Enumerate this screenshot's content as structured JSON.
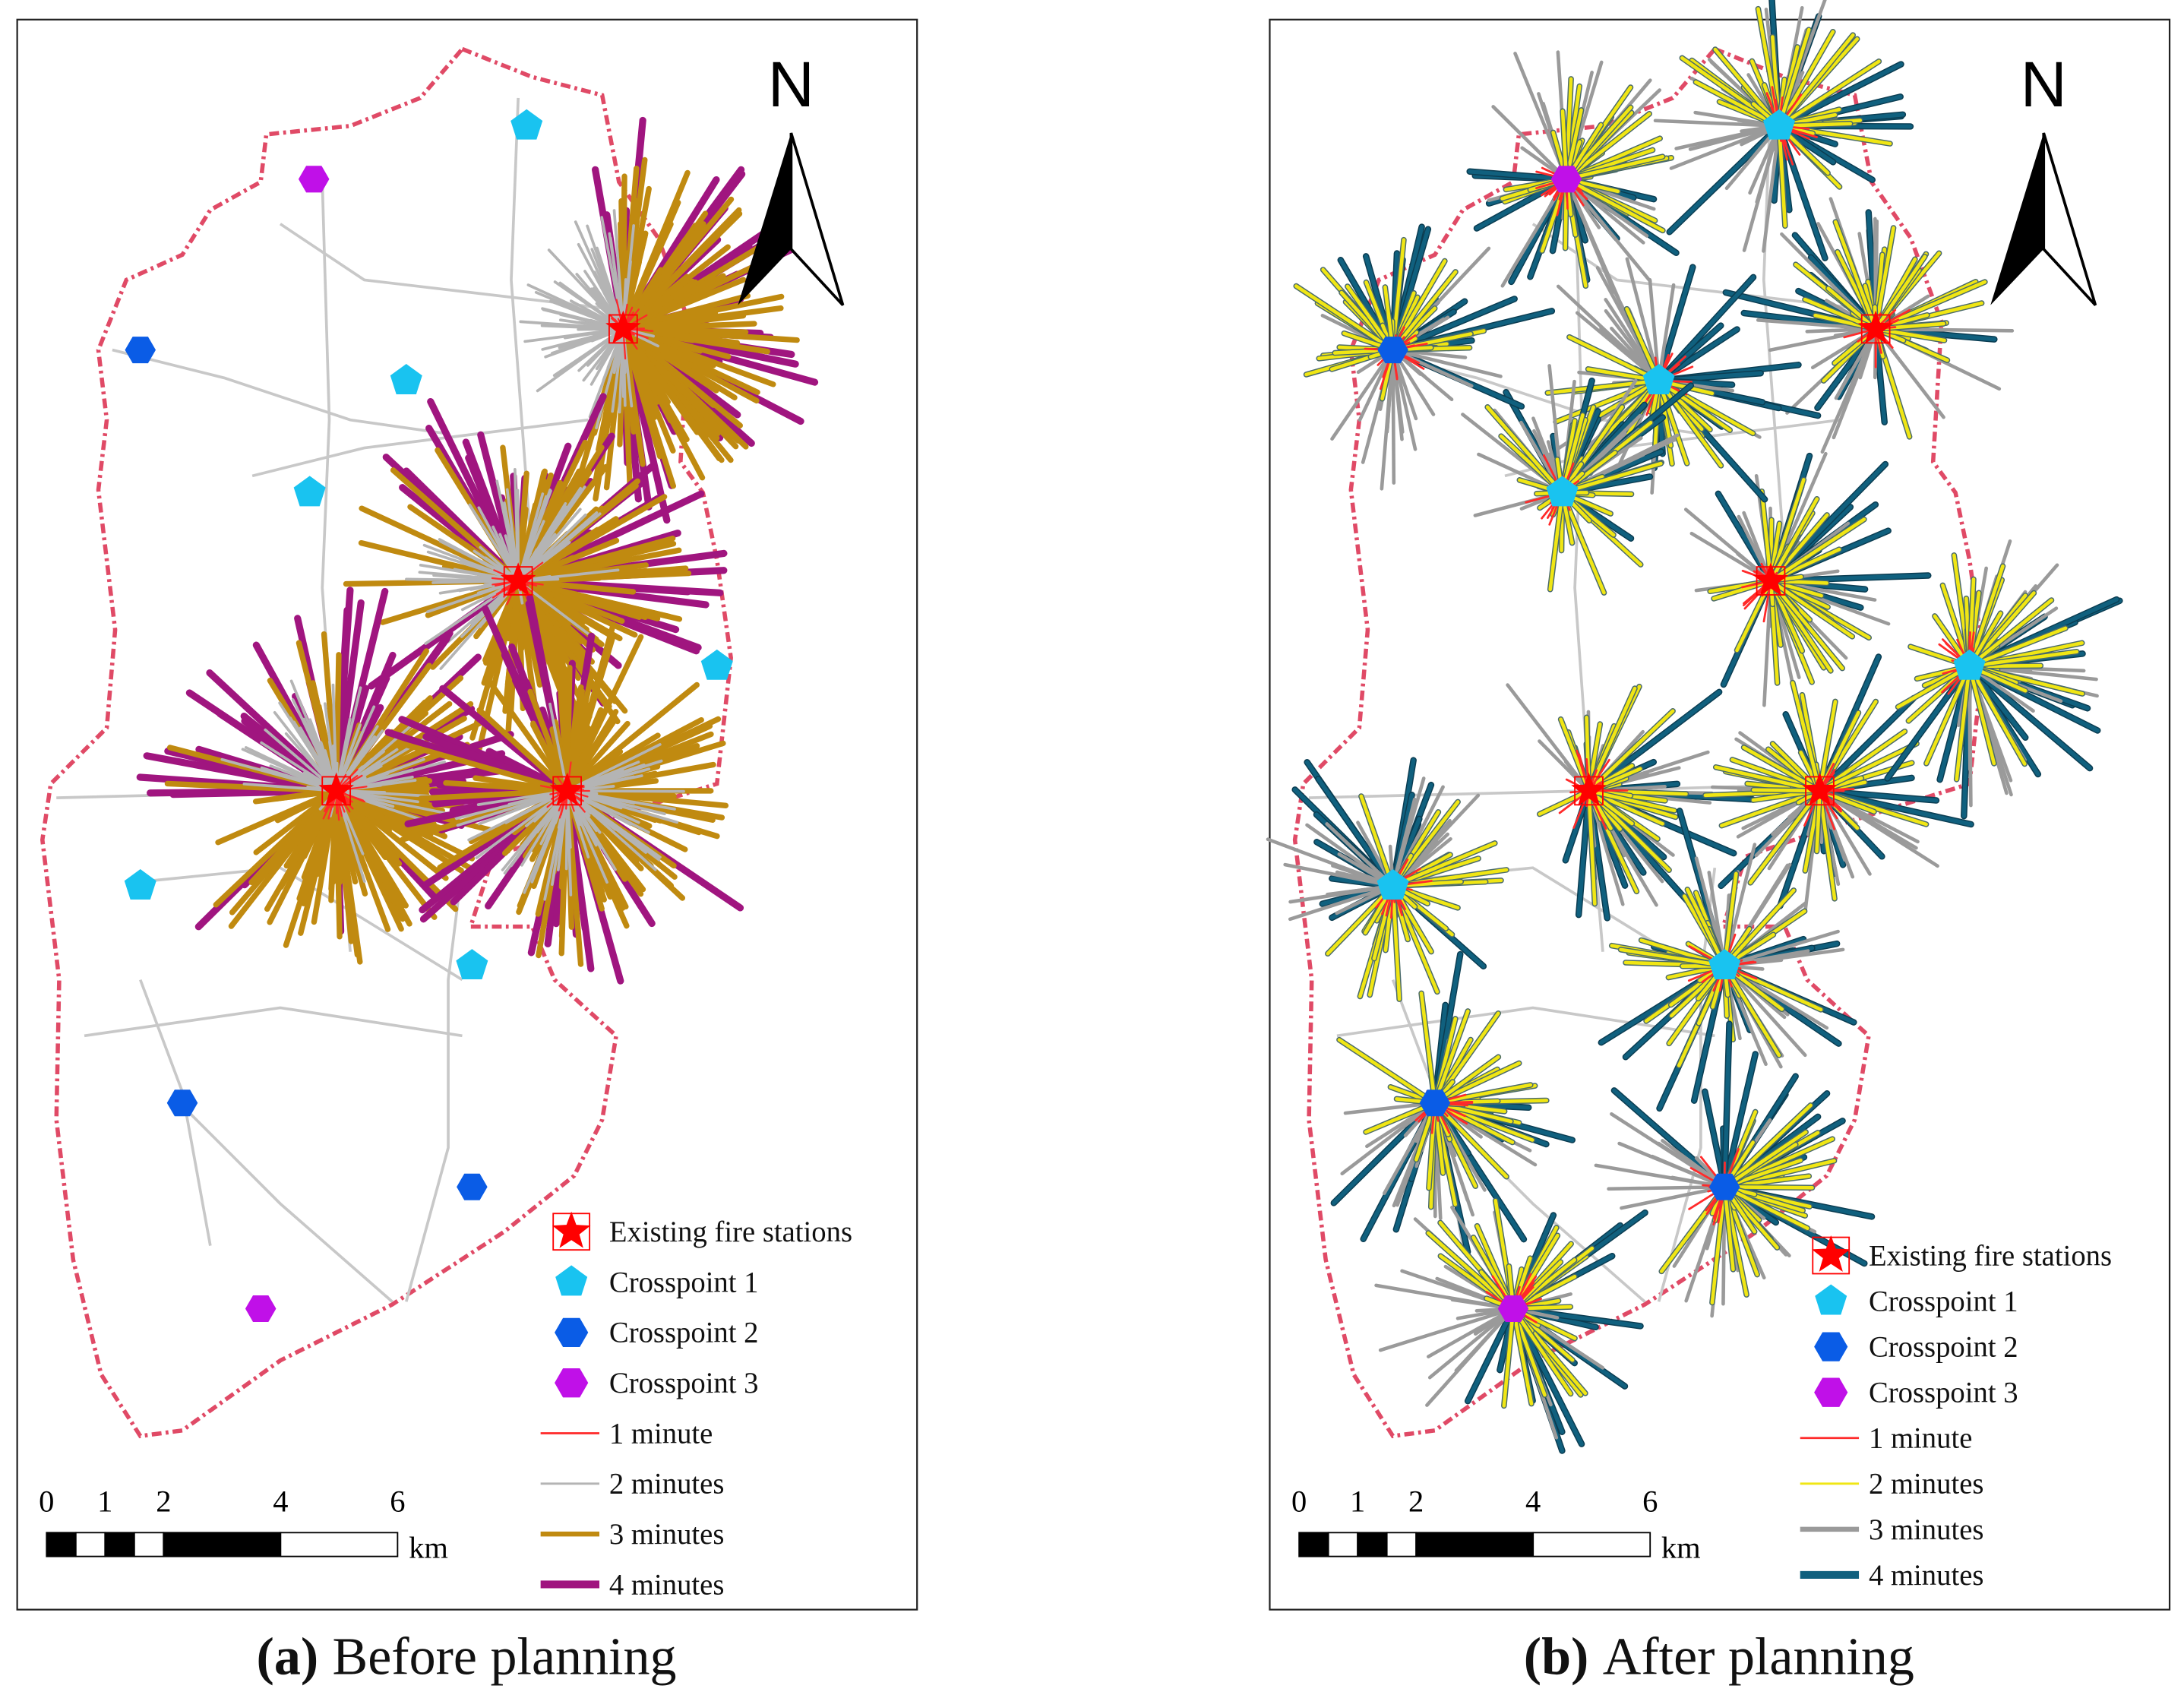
{
  "north_label": "N",
  "panels": [
    {
      "label": "(a)",
      "caption": "Before planning",
      "legend": [
        {
          "label": "Existing fire stations",
          "symbol": "star",
          "color": "#ff0000"
        },
        {
          "label": "Crosspoint 1",
          "symbol": "pentagon",
          "color": "#19c3f0"
        },
        {
          "label": "Crosspoint 2",
          "symbol": "hexagon",
          "color": "#0a5ce6"
        },
        {
          "label": "Crosspoint 3",
          "symbol": "hexagon",
          "color": "#c010e8"
        },
        {
          "label": "1 minute",
          "symbol": "line",
          "color": "#ff2a2a"
        },
        {
          "label": "2 minutes",
          "symbol": "line",
          "color": "#b4b4b4"
        },
        {
          "label": "3 minutes",
          "symbol": "line",
          "color": "#c08a10"
        },
        {
          "label": "4 minutes",
          "symbol": "line",
          "color": "#a0157f"
        }
      ],
      "scale_bar": {
        "ticks": [
          0,
          1,
          2,
          4,
          6
        ],
        "unit": "km"
      }
    },
    {
      "label": "(b)",
      "caption": "After planning",
      "legend": [
        {
          "label": "Existing fire stations",
          "symbol": "star",
          "color": "#ff0000"
        },
        {
          "label": "Crosspoint 1",
          "symbol": "pentagon",
          "color": "#19c3f0"
        },
        {
          "label": "Crosspoint 2",
          "symbol": "hexagon",
          "color": "#0a5ce6"
        },
        {
          "label": "Crosspoint 3",
          "symbol": "hexagon",
          "color": "#c010e8"
        },
        {
          "label": "1 minute",
          "symbol": "line",
          "color": "#ff2a2a"
        },
        {
          "label": "2 minutes",
          "symbol": "line",
          "color": "#f0e614"
        },
        {
          "label": "3 minutes",
          "symbol": "line",
          "color": "#9a9a9a"
        },
        {
          "label": "4 minutes",
          "symbol": "line",
          "color": "#10607e"
        }
      ],
      "scale_bar": {
        "ticks": [
          0,
          1,
          2,
          4,
          6
        ],
        "unit": "km"
      }
    }
  ]
}
